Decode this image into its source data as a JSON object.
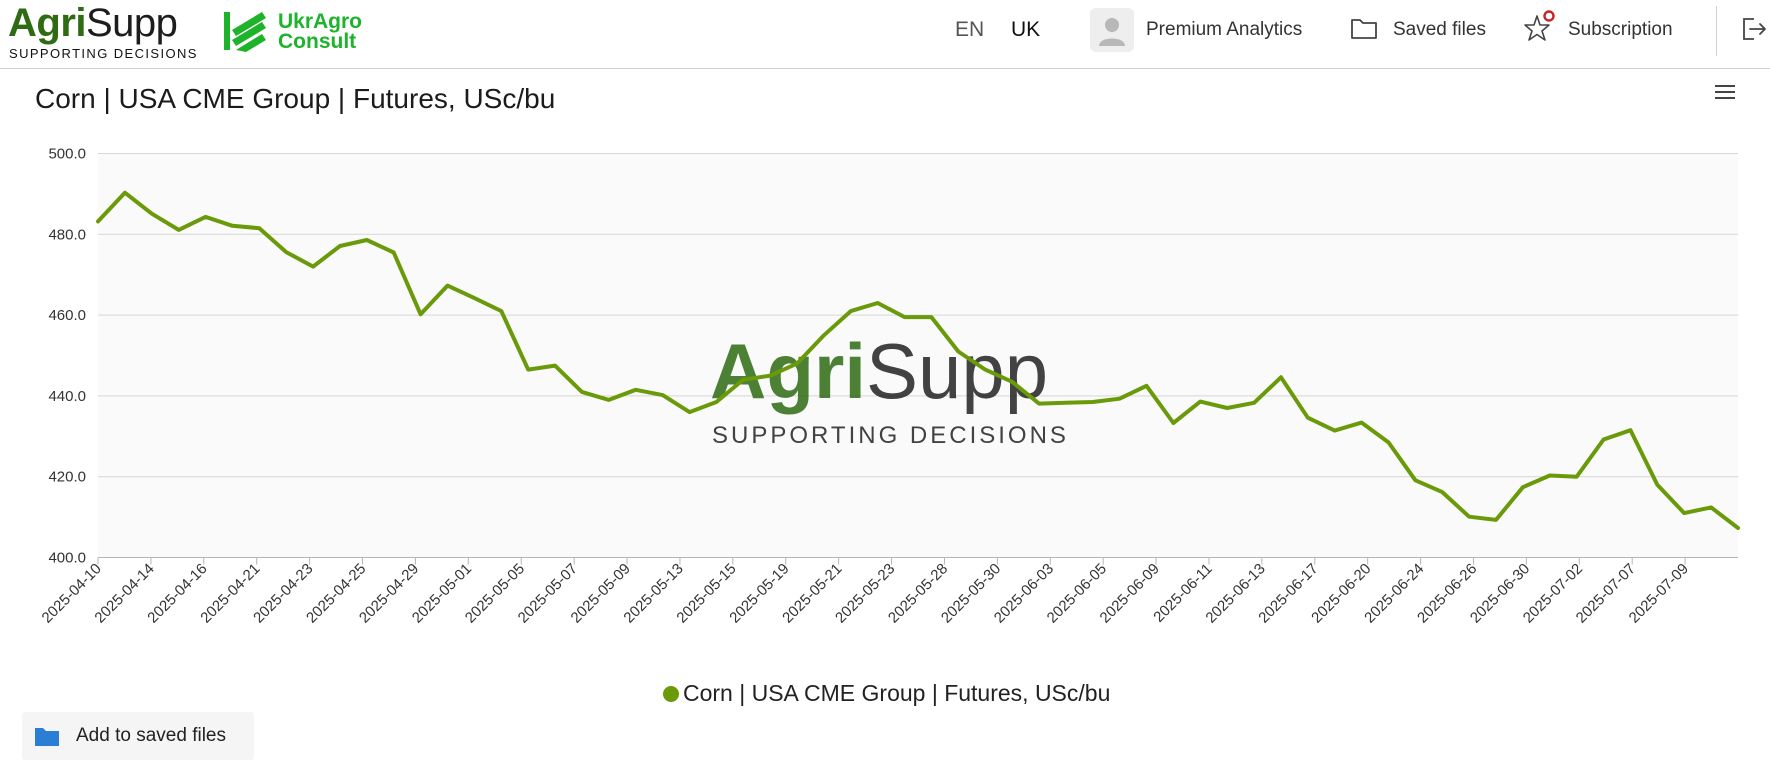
{
  "header": {
    "logo": {
      "brand_first": "Agri",
      "brand_second": "Supp",
      "tagline": "SUPPORTING DECISIONS"
    },
    "partner_logo": {
      "line1": "UkrAgro",
      "line2": "Consult"
    },
    "languages": [
      {
        "code": "EN",
        "active": false
      },
      {
        "code": "UK",
        "active": true
      }
    ],
    "nav": {
      "premium_label": "Premium Analytics",
      "saved_label": "Saved files",
      "subscription_label": "Subscription"
    },
    "icons": {
      "avatar": "user-avatar-icon",
      "saved": "folder-icon",
      "subscription": "star-icon",
      "logout": "logout-icon"
    }
  },
  "colors": {
    "series": "#6a9a0a",
    "brand_green": "#2e6b12",
    "partner_green": "#1db32b",
    "badge": "#cc2222",
    "folder": "#2a7fd4"
  },
  "chart_menu_icon": "hamburger-menu-icon",
  "chart_data": {
    "type": "line",
    "title": "Corn | USA CME Group | Futures, USc/bu",
    "ylim": [
      400,
      500
    ],
    "yticks": [
      400.0,
      420.0,
      440.0,
      460.0,
      480.0,
      500.0
    ],
    "ytick_labels": [
      "400.0",
      "420.0",
      "440.0",
      "460.0",
      "480.0",
      "500.0"
    ],
    "grid": true,
    "legend_position": "bottom-center",
    "watermark": {
      "brand_first": "Agri",
      "brand_second": "Supp",
      "tagline": "SUPPORTING DECISIONS"
    },
    "x_tick_labels": [
      "2025-04-10",
      "2025-04-14",
      "2025-04-16",
      "2025-04-21",
      "2025-04-23",
      "2025-04-25",
      "2025-04-29",
      "2025-05-01",
      "2025-05-05",
      "2025-05-07",
      "2025-05-09",
      "2025-05-13",
      "2025-05-15",
      "2025-05-19",
      "2025-05-21",
      "2025-05-23",
      "2025-05-28",
      "2025-05-30",
      "2025-06-03",
      "2025-06-05",
      "2025-06-09",
      "2025-06-11",
      "2025-06-13",
      "2025-06-17",
      "2025-06-20",
      "2025-06-24",
      "2025-06-26",
      "2025-06-30",
      "2025-07-02",
      "2025-07-07",
      "2025-07-09"
    ],
    "series": [
      {
        "name": "Corn | USA CME Group | Futures, USc/bu",
        "color": "#6a9a0a",
        "values": [
          483.2,
          490.3,
          485.1,
          481.1,
          484.3,
          482.1,
          481.5,
          475.6,
          472.0,
          477.1,
          478.6,
          475.5,
          460.2,
          467.3,
          464.2,
          461.0,
          446.5,
          447.5,
          441.0,
          439.0,
          441.5,
          440.2,
          436.0,
          438.5,
          444.0,
          445.0,
          448.0,
          455.0,
          461.0,
          463.0,
          459.5,
          459.5,
          451.0,
          446.5,
          443.5,
          438.1,
          438.3,
          438.5,
          439.3,
          442.5,
          433.3,
          438.6,
          437.0,
          438.3,
          444.6,
          434.6,
          431.4,
          433.4,
          428.5,
          419.1,
          416.2,
          410.1,
          409.3,
          417.4,
          420.3,
          420.0,
          429.2,
          431.5,
          418.0,
          411.0,
          412.4,
          407.3
        ]
      }
    ]
  },
  "actions": {
    "add_saved_label": "Add to saved files"
  }
}
